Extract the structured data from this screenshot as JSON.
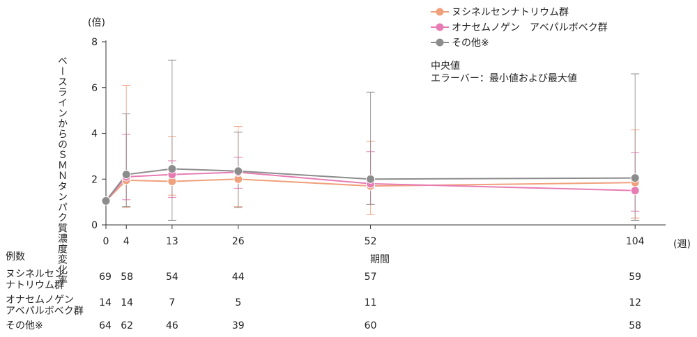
{
  "chart_data": {
    "type": "line",
    "y_unit": "(倍)",
    "ylabel": "ベースラインからのＳＭＮタンパク質濃度変化率",
    "xlabel": "期間",
    "x_unit": "(週)",
    "ylim": [
      0,
      8
    ],
    "yticks": [
      0,
      2,
      4,
      6,
      8
    ],
    "x": [
      0,
      4,
      13,
      26,
      52,
      104
    ],
    "legend_position": "top-right",
    "note_lines": [
      "中央値",
      "エラーバー：最小値および最大値"
    ],
    "series": [
      {
        "name": "ヌシネルセンナトリウム群",
        "color": "#f0a07c",
        "values": [
          1.05,
          1.95,
          1.9,
          2.0,
          1.7,
          1.85
        ],
        "err_min": [
          1.05,
          0.75,
          1.3,
          0.8,
          0.45,
          0.3
        ],
        "err_max": [
          1.05,
          6.1,
          3.85,
          4.3,
          3.65,
          4.15
        ]
      },
      {
        "name": "オナセムノゲン　アベパルボベク群",
        "color": "#e77cb4",
        "values": [
          1.05,
          2.1,
          2.2,
          2.3,
          1.8,
          1.5
        ],
        "err_min": [
          1.05,
          1.1,
          1.2,
          1.6,
          0.9,
          0.6
        ],
        "err_max": [
          1.05,
          3.95,
          2.8,
          2.95,
          3.2,
          3.15
        ]
      },
      {
        "name": "その他※",
        "color": "#8c8c8c",
        "values": [
          1.05,
          2.2,
          2.45,
          2.35,
          2.0,
          2.05
        ],
        "err_min": [
          1.05,
          0.8,
          0.2,
          0.75,
          0.9,
          0.2
        ],
        "err_max": [
          1.05,
          4.85,
          7.2,
          4.05,
          5.8,
          6.6
        ]
      }
    ]
  },
  "counts": {
    "title": "例数",
    "rows": [
      {
        "label_lines": [
          "ヌシネルセン",
          "ナトリウム群"
        ],
        "values": [
          "69",
          "58",
          "54",
          "44",
          "57",
          "59"
        ]
      },
      {
        "label_lines": [
          "オナセムノゲン",
          "アベパルボベク群"
        ],
        "values": [
          "14",
          "14",
          "7",
          "5",
          "11",
          "12"
        ]
      },
      {
        "label_lines": [
          "その他※"
        ],
        "values": [
          "64",
          "62",
          "46",
          "39",
          "60",
          "58"
        ]
      }
    ]
  }
}
